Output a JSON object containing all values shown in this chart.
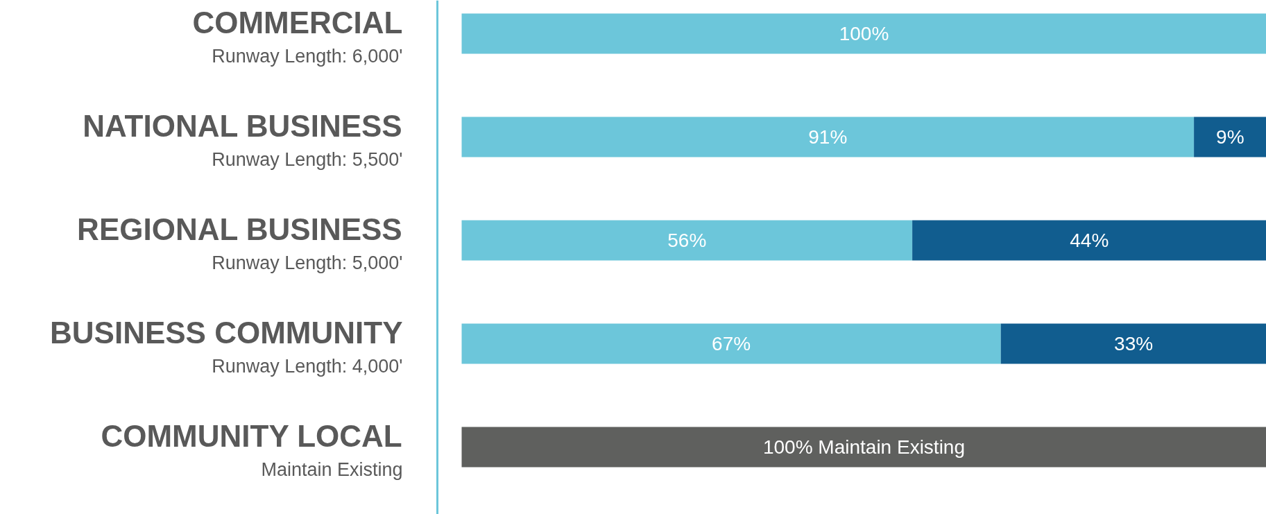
{
  "chart_data": {
    "type": "bar",
    "orientation": "horizontal",
    "stacked": true,
    "categories": [
      "COMMERCIAL\nRunway Length: 6,000'",
      "NATIONAL BUSINESS\nRunway Length: 5,500'",
      "REGIONAL BUSINESS\nRunway Length: 5,000'",
      "BUSINESS COMMUNITY\nRunway Length: 4,000'",
      "COMMUNITY LOCAL\nMaintain Existing"
    ],
    "series": [
      {
        "color": "#6cc6da",
        "values": [
          100,
          91,
          56,
          67,
          null
        ],
        "value_labels": [
          "100%",
          "91%",
          "56%",
          "67%",
          null
        ]
      },
      {
        "color": "#115d8f",
        "values": [
          null,
          9,
          44,
          33,
          null
        ],
        "value_labels": [
          null,
          "9%",
          "44%",
          "33%",
          null
        ]
      },
      {
        "color": "#5f605e",
        "values": [
          null,
          null,
          null,
          null,
          100
        ],
        "value_labels": [
          null,
          null,
          null,
          null,
          "100% Maintain Existing"
        ]
      }
    ],
    "grid": false
  }
}
